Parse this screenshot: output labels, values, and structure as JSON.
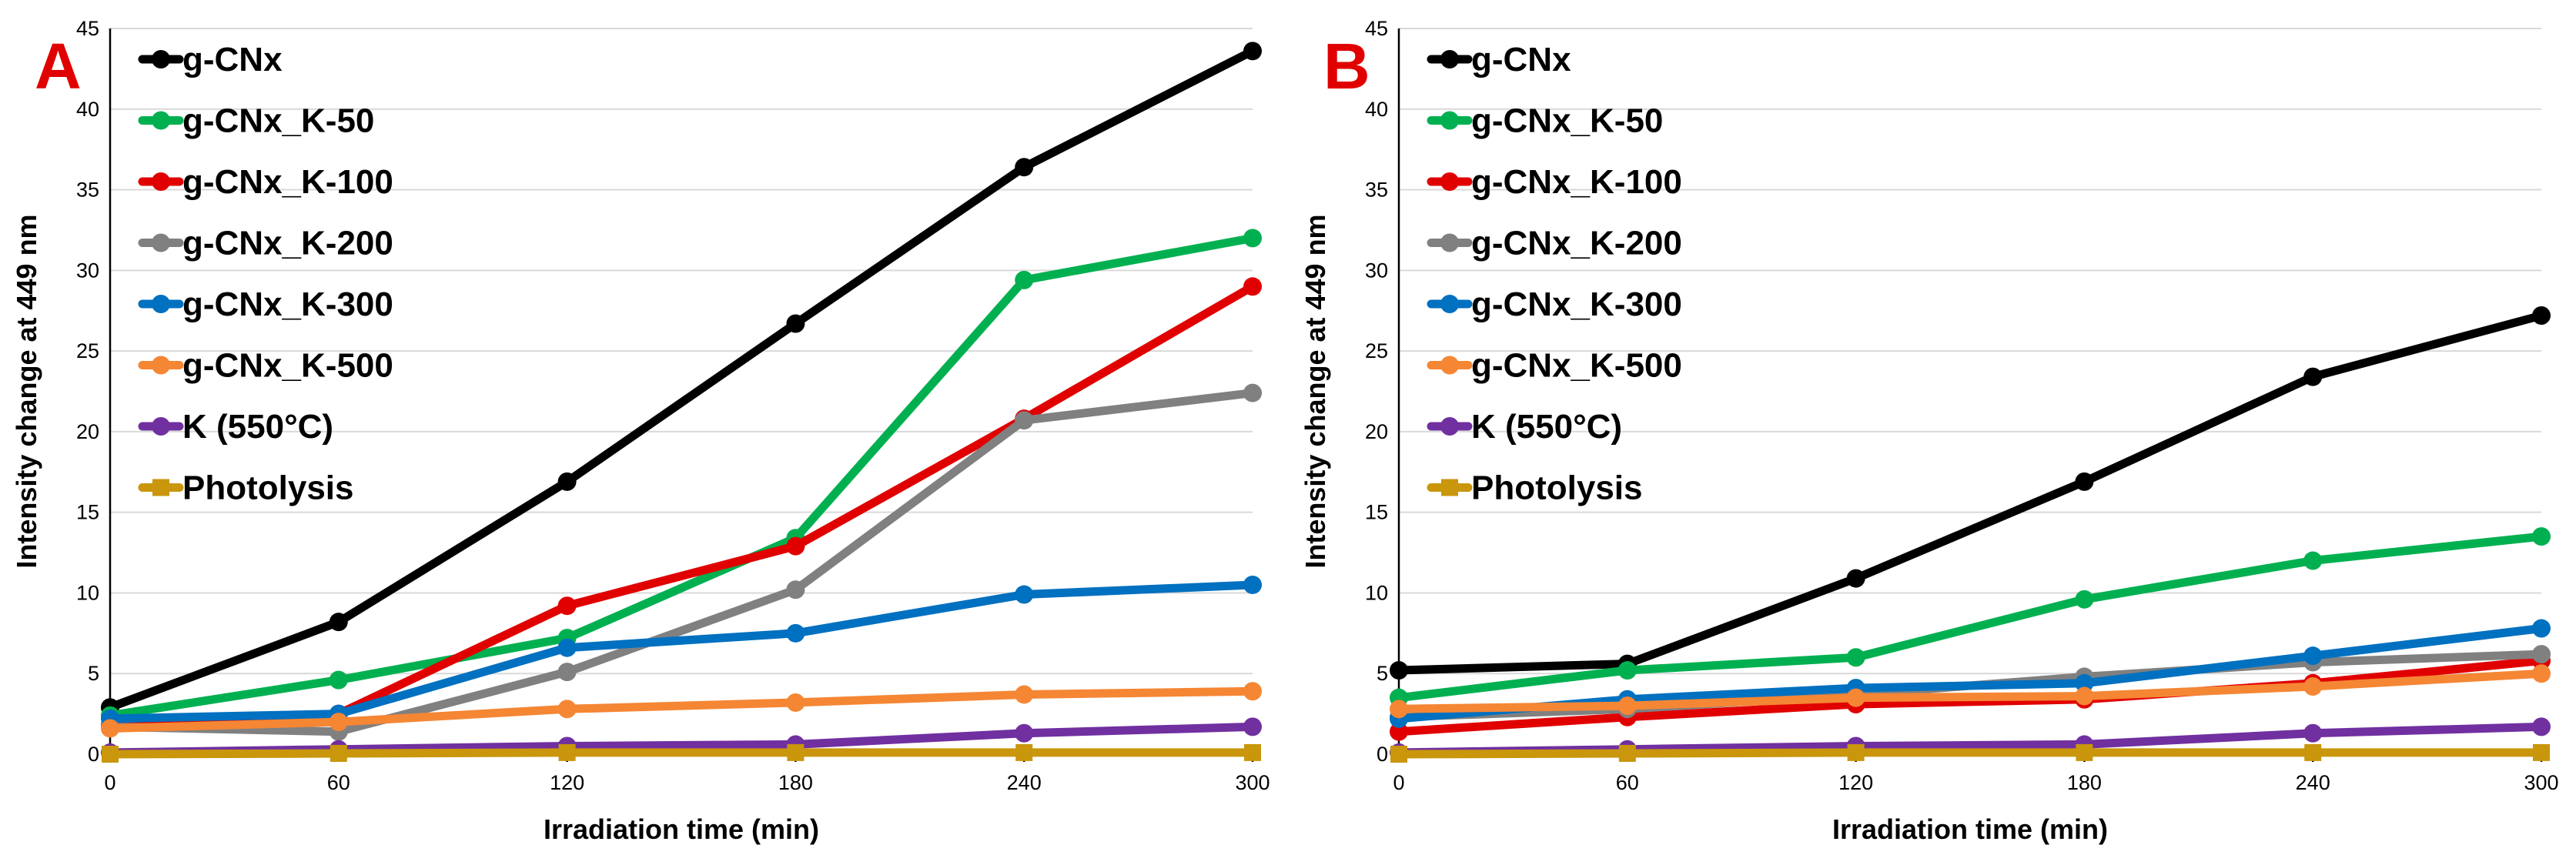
{
  "chart_data": [
    {
      "type": "line",
      "panel_label": "A",
      "xlabel": "Irradiation time (min)",
      "ylabel": "Intensity change at 449 nm",
      "x": [
        0,
        60,
        120,
        180,
        240,
        300
      ],
      "xlim": [
        0,
        300
      ],
      "ylim": [
        0,
        45
      ],
      "yticks": [
        0,
        5,
        10,
        15,
        20,
        25,
        30,
        35,
        40,
        45
      ],
      "grid": "horizontal",
      "legend": "top-left",
      "series": [
        {
          "name": "g-CNx",
          "color": "#000000",
          "values": [
            2.9,
            8.2,
            16.9,
            26.7,
            36.4,
            43.6
          ]
        },
        {
          "name": "g-CNx_K-50",
          "color": "#00B050",
          "values": [
            2.4,
            4.6,
            7.2,
            13.4,
            29.4,
            32.0
          ]
        },
        {
          "name": "g-CNx_K-100",
          "color": "#E00000",
          "values": [
            1.8,
            2.5,
            9.2,
            12.9,
            20.8,
            29.0
          ]
        },
        {
          "name": "g-CNx_K-200",
          "color": "#808080",
          "values": [
            1.7,
            1.4,
            5.1,
            10.2,
            20.7,
            22.4
          ]
        },
        {
          "name": "g-CNx_K-300",
          "color": "#0070C0",
          "values": [
            2.2,
            2.5,
            6.6,
            7.5,
            9.9,
            10.5
          ]
        },
        {
          "name": "g-CNx_K-500",
          "color": "#F58634",
          "values": [
            1.6,
            2.0,
            2.8,
            3.2,
            3.7,
            3.9
          ]
        },
        {
          "name": "K (550°C)",
          "color": "#7030A0",
          "values": [
            0.1,
            0.3,
            0.5,
            0.6,
            1.3,
            1.7
          ]
        },
        {
          "name": "Photolysis",
          "color": "#C9960C",
          "values": [
            0.0,
            0.05,
            0.1,
            0.1,
            0.1,
            0.1
          ]
        }
      ]
    },
    {
      "type": "line",
      "panel_label": "B",
      "xlabel": "Irradiation time (min)",
      "ylabel": "Intensity change at 449 nm",
      "x": [
        0,
        60,
        120,
        180,
        240,
        300
      ],
      "xlim": [
        0,
        300
      ],
      "ylim": [
        0,
        45
      ],
      "yticks": [
        0,
        5,
        10,
        15,
        20,
        25,
        30,
        35,
        40,
        45
      ],
      "grid": "horizontal",
      "legend": "top-left",
      "series": [
        {
          "name": "g-CNx",
          "color": "#000000",
          "values": [
            5.2,
            5.6,
            10.9,
            16.9,
            23.4,
            27.2
          ]
        },
        {
          "name": "g-CNx_K-50",
          "color": "#00B050",
          "values": [
            3.5,
            5.2,
            6.0,
            9.6,
            12.0,
            13.5
          ]
        },
        {
          "name": "g-CNx_K-100",
          "color": "#E00000",
          "values": [
            1.4,
            2.3,
            3.1,
            3.4,
            4.4,
            5.8
          ]
        },
        {
          "name": "g-CNx_K-200",
          "color": "#808080",
          "values": [
            2.3,
            2.8,
            3.7,
            4.8,
            5.7,
            6.2
          ]
        },
        {
          "name": "g-CNx_K-300",
          "color": "#0070C0",
          "values": [
            2.2,
            3.4,
            4.1,
            4.4,
            6.1,
            7.8
          ]
        },
        {
          "name": "g-CNx_K-500",
          "color": "#F58634",
          "values": [
            2.8,
            3.0,
            3.5,
            3.6,
            4.2,
            5.0
          ]
        },
        {
          "name": "K (550°C)",
          "color": "#7030A0",
          "values": [
            0.1,
            0.3,
            0.5,
            0.6,
            1.3,
            1.7
          ]
        },
        {
          "name": "Photolysis",
          "color": "#C9960C",
          "values": [
            0.0,
            0.05,
            0.1,
            0.1,
            0.1,
            0.1
          ]
        }
      ]
    }
  ],
  "colors": {
    "panel_label": "#E00000",
    "gridline": "#D9D9D9",
    "axis": "#000000"
  }
}
